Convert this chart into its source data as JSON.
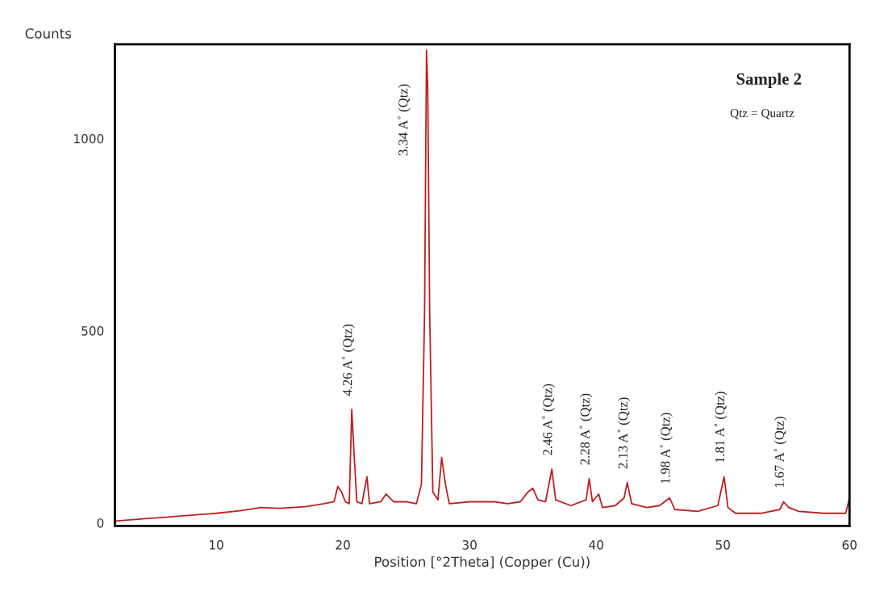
{
  "chart_data": {
    "type": "line",
    "title": "Sample 2",
    "subtitle": "Qtz = Quartz",
    "xlabel": "Position [°2Theta] (Copper (Cu))",
    "ylabel": "Counts",
    "x": [
      2,
      4,
      6,
      8,
      10,
      12,
      13.5,
      15,
      17,
      18.5,
      19.3,
      19.6,
      19.9,
      20.2,
      20.5,
      20.7,
      20.9,
      21.1,
      21.5,
      21.9,
      22.1,
      23,
      23.4,
      24,
      25,
      25.8,
      26.2,
      26.45,
      26.6,
      26.7,
      26.85,
      27.1,
      27.5,
      27.8,
      28.1,
      28.4,
      30,
      32,
      33,
      34,
      34.6,
      35,
      35.4,
      36,
      36.5,
      36.8,
      38,
      39.2,
      39.45,
      39.7,
      40.2,
      40.5,
      41.5,
      42.2,
      42.45,
      42.8,
      44,
      45,
      45.8,
      46.2,
      48,
      49.6,
      50.1,
      50.4,
      51,
      53,
      54.5,
      54.8,
      55.2,
      56,
      58,
      59.7,
      60
    ],
    "series": [
      {
        "color": "#c0201f",
        "values": [
          5,
          10,
          15,
          20,
          25,
          32,
          40,
          38,
          42,
          50,
          55,
          95,
          80,
          55,
          50,
          295,
          170,
          55,
          50,
          120,
          50,
          55,
          75,
          55,
          55,
          50,
          100,
          550,
          1230,
          1130,
          550,
          80,
          60,
          170,
          100,
          50,
          55,
          55,
          50,
          55,
          80,
          90,
          60,
          55,
          140,
          60,
          45,
          60,
          115,
          55,
          75,
          40,
          45,
          65,
          105,
          50,
          40,
          45,
          65,
          35,
          30,
          45,
          120,
          40,
          25,
          25,
          35,
          55,
          40,
          30,
          25,
          25,
          65
        ]
      }
    ],
    "xlim": [
      2,
      60
    ],
    "ylim": [
      -8,
      1245
    ],
    "xticks": [
      10,
      20,
      30,
      40,
      50,
      60
    ],
    "yticks": [
      0,
      500,
      1000
    ],
    "grid": false,
    "legend": false,
    "marker": "none",
    "line_style": "solid",
    "annotations": [
      {
        "text": "4.26 A˚ (Qtz)",
        "x": 20.7,
        "y": 295
      },
      {
        "text": "3.34 A˚ (Qtz)",
        "x": 26.6,
        "y": 1230
      },
      {
        "text": "2.46 A˚ (Qtz)",
        "x": 36.5,
        "y": 140
      },
      {
        "text": "2.28 A˚ (Qtz)",
        "x": 39.45,
        "y": 115
      },
      {
        "text": "2.13 A˚ (Qtz)",
        "x": 42.45,
        "y": 105
      },
      {
        "text": "1.98 A˚ (Qtz)",
        "x": 45.8,
        "y": 65
      },
      {
        "text": "1.81 A˚ (Qtz)",
        "x": 50.1,
        "y": 120
      },
      {
        "text": "1.67 A˚ (Qtz)",
        "x": 54.8,
        "y": 55
      }
    ]
  }
}
